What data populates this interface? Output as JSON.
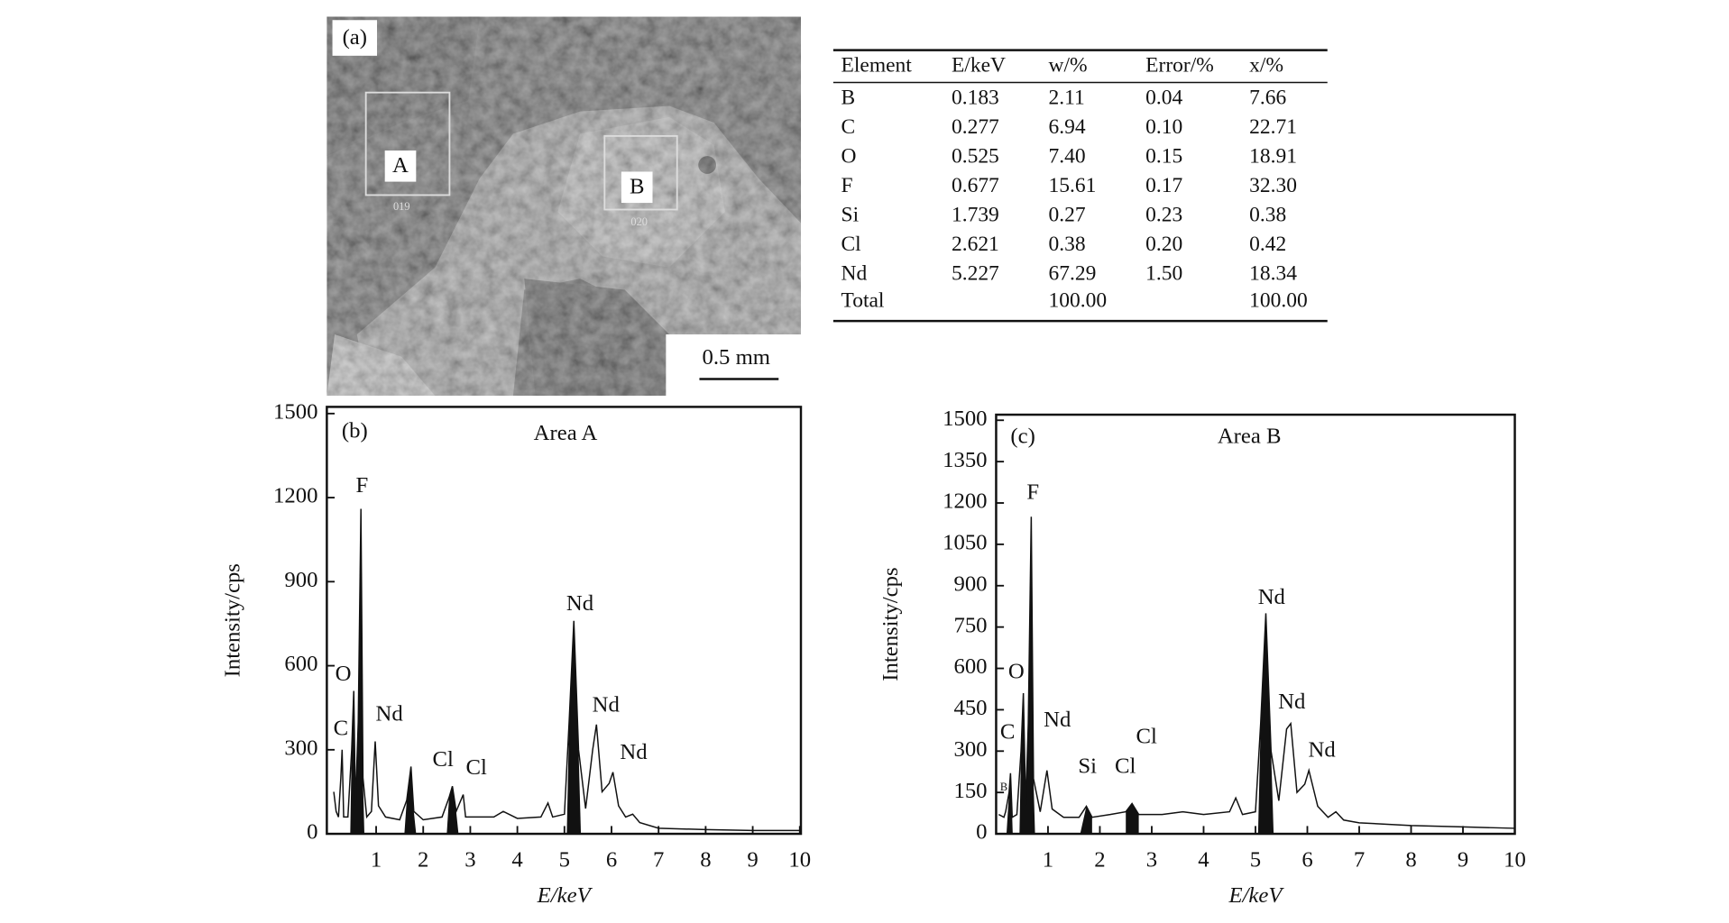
{
  "figure": {
    "panel_a": {
      "label": "(a)",
      "regions": [
        {
          "label": "A",
          "code": "019"
        },
        {
          "label": "B",
          "code": "020"
        }
      ],
      "scale_bar": "0.5 mm"
    },
    "table": {
      "headers": [
        "Element",
        "E/keV",
        "w/%",
        "Error/%",
        "x/%"
      ],
      "rows": [
        [
          "B",
          "0.183",
          "2.11",
          "0.04",
          "7.66"
        ],
        [
          "C",
          "0.277",
          "6.94",
          "0.10",
          "22.71"
        ],
        [
          "O",
          "0.525",
          "7.40",
          "0.15",
          "18.91"
        ],
        [
          "F",
          "0.677",
          "15.61",
          "0.17",
          "32.30"
        ],
        [
          "Si",
          "1.739",
          "0.27",
          "0.23",
          "0.38"
        ],
        [
          "Cl",
          "2.621",
          "0.38",
          "0.20",
          "0.42"
        ],
        [
          "Nd",
          "5.227",
          "67.29",
          "1.50",
          "18.34"
        ]
      ],
      "total": {
        "label": "Total",
        "w": "100.00",
        "x": "100.00"
      }
    }
  },
  "chart_data": [
    {
      "type": "line",
      "panel": "(b)",
      "title": "Area A",
      "x_label": "E/keV",
      "y_label": "Intensity/cps",
      "color": "#111111",
      "xlim": [
        0,
        10
      ],
      "xticks": [
        1,
        2,
        3,
        4,
        5,
        6,
        7,
        8,
        9,
        10
      ],
      "ylim": [
        0,
        1500
      ],
      "yticks": [
        0,
        300,
        600,
        900,
        1200,
        1500
      ],
      "x": [
        0.1,
        0.15,
        0.2,
        0.25,
        0.277,
        0.31,
        0.4,
        0.48,
        0.525,
        0.56,
        0.62,
        0.677,
        0.72,
        0.8,
        0.9,
        0.98,
        1.05,
        1.2,
        1.5,
        1.65,
        1.74,
        1.8,
        2.0,
        2.4,
        2.55,
        2.62,
        2.7,
        2.85,
        2.9,
        3.5,
        3.7,
        4.0,
        4.5,
        4.65,
        4.75,
        5.0,
        5.1,
        5.2,
        5.3,
        5.45,
        5.6,
        5.68,
        5.8,
        5.95,
        6.03,
        6.15,
        6.3,
        6.45,
        6.6,
        7,
        8,
        9,
        10
      ],
      "values": [
        150,
        80,
        60,
        200,
        300,
        60,
        60,
        300,
        510,
        100,
        400,
        1160,
        200,
        60,
        80,
        330,
        100,
        60,
        50,
        120,
        240,
        80,
        50,
        60,
        130,
        170,
        80,
        140,
        60,
        60,
        80,
        55,
        60,
        110,
        60,
        70,
        400,
        760,
        300,
        90,
        300,
        390,
        150,
        180,
        220,
        100,
        60,
        70,
        40,
        20,
        15,
        12,
        12
      ],
      "filled_peaks": [
        [
          0.45,
          0.75
        ],
        [
          1.6,
          1.85
        ],
        [
          2.5,
          2.75
        ],
        [
          5.05,
          5.35
        ]
      ],
      "annotations": [
        {
          "text": "C",
          "x": 0.25,
          "y": 370
        },
        {
          "text": "O",
          "x": 0.3,
          "y": 565
        },
        {
          "text": "F",
          "x": 0.7,
          "y": 1237
        },
        {
          "text": "Nd",
          "x": 1.28,
          "y": 422
        },
        {
          "text": "Cl",
          "x": 2.42,
          "y": 259
        },
        {
          "text": "Cl",
          "x": 3.13,
          "y": 231
        },
        {
          "text": "Nd",
          "x": 5.33,
          "y": 816
        },
        {
          "text": "Nd",
          "x": 5.88,
          "y": 454
        },
        {
          "text": "Nd",
          "x": 6.47,
          "y": 286
        }
      ]
    },
    {
      "type": "line",
      "panel": "(c)",
      "title": "Area B",
      "x_label": "E/keV",
      "y_label": "Intensity/cps",
      "color": "#111111",
      "xlim": [
        0,
        10
      ],
      "xticks": [
        1,
        2,
        3,
        4,
        5,
        6,
        7,
        8,
        9,
        10
      ],
      "ylim": [
        0,
        1500
      ],
      "yticks": [
        0,
        150,
        300,
        450,
        600,
        750,
        900,
        1050,
        1200,
        1350,
        1500
      ],
      "x": [
        0.05,
        0.15,
        0.183,
        0.25,
        0.277,
        0.31,
        0.4,
        0.48,
        0.525,
        0.57,
        0.62,
        0.677,
        0.72,
        0.85,
        0.98,
        1.08,
        1.3,
        1.6,
        1.74,
        1.85,
        2.2,
        2.5,
        2.62,
        2.75,
        3.2,
        3.6,
        4.0,
        4.5,
        4.62,
        4.75,
        5.0,
        5.1,
        5.2,
        5.3,
        5.45,
        5.6,
        5.68,
        5.8,
        5.95,
        6.03,
        6.2,
        6.4,
        6.55,
        6.7,
        7,
        8,
        9,
        10
      ],
      "values": [
        70,
        60,
        80,
        150,
        220,
        60,
        70,
        300,
        510,
        100,
        400,
        1150,
        200,
        80,
        230,
        90,
        60,
        60,
        100,
        60,
        70,
        80,
        110,
        70,
        70,
        80,
        70,
        80,
        130,
        70,
        80,
        400,
        800,
        300,
        120,
        380,
        400,
        150,
        180,
        230,
        100,
        60,
        80,
        50,
        40,
        30,
        25,
        20
      ],
      "filled_peaks": [
        [
          0.2,
          0.32
        ],
        [
          0.45,
          0.75
        ],
        [
          1.62,
          1.85
        ],
        [
          2.5,
          2.75
        ],
        [
          5.05,
          5.35
        ]
      ],
      "annotations": [
        {
          "text": "B",
          "x": 0.15,
          "y": 166
        },
        {
          "text": "C",
          "x": 0.22,
          "y": 364
        },
        {
          "text": "O",
          "x": 0.39,
          "y": 582
        },
        {
          "text": "F",
          "x": 0.71,
          "y": 1233
        },
        {
          "text": "Nd",
          "x": 1.18,
          "y": 408
        },
        {
          "text": "Si",
          "x": 1.76,
          "y": 239
        },
        {
          "text": "Cl",
          "x": 2.49,
          "y": 239
        },
        {
          "text": "Cl",
          "x": 2.9,
          "y": 348
        },
        {
          "text": "Nd",
          "x": 5.31,
          "y": 853
        },
        {
          "text": "Nd",
          "x": 5.7,
          "y": 473
        },
        {
          "text": "Nd",
          "x": 6.28,
          "y": 299
        }
      ]
    }
  ]
}
